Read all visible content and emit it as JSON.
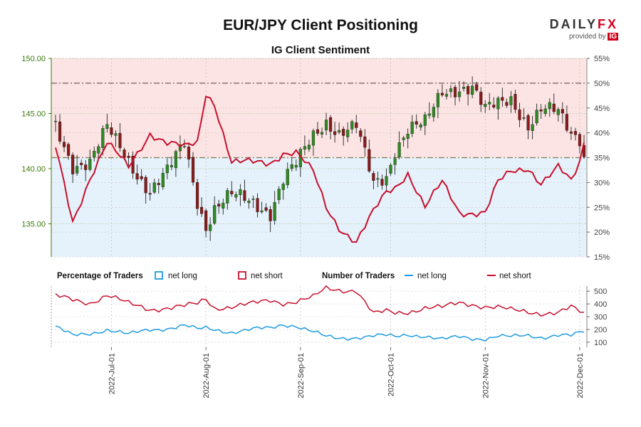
{
  "header": {
    "title": "EUR/JPY Client Positioning",
    "subtitle": "IG Client Sentiment"
  },
  "logo": {
    "brand_a": "DAILY",
    "brand_b": "FX",
    "provided_by": "provided by",
    "ig": "IG"
  },
  "legend": {
    "pct_title": "Percentage of Traders",
    "pct_long": "net long",
    "pct_short": "net short",
    "num_title": "Number of Traders",
    "num_long": "net long",
    "num_short": "net short"
  },
  "colors": {
    "long": "#1e9be0",
    "short": "#c8102e",
    "candle_up": "#2e8b22",
    "candle_down": "#8b1a1a",
    "wick": "#222222",
    "price_axis": "#3a7a0a",
    "short_zone": "#fce4e4",
    "long_zone": "#e6f2fb"
  },
  "chart_data": [
    {
      "type": "candlestick",
      "title": "EUR/JPY Client Positioning",
      "subtitle": "IG Client Sentiment",
      "y_left": {
        "ticks": [
          "150.00",
          "145.00",
          "140.00",
          "135.00"
        ],
        "ylim": [
          132.0,
          150.0
        ]
      },
      "y_right": {
        "ticks": [
          "55%",
          "50%",
          "45%",
          "40%",
          "35%",
          "30%",
          "25%",
          "20%",
          "15%"
        ],
        "ylim": [
          15,
          55
        ]
      },
      "reference_lines": [
        {
          "value": 50,
          "axis": "right",
          "style": "dash-dot"
        },
        {
          "value": 35,
          "axis": "right",
          "style": "dash-dot"
        }
      ],
      "x_labels": [
        "2022-Jul-01",
        "2022-Aug-01",
        "2022-Sep-01",
        "2022-Oct-01",
        "2022-Nov-01",
        "2022-Dec-01"
      ],
      "x_label_index": [
        13,
        35,
        57,
        78,
        100,
        122
      ],
      "anchors": {
        "idx": [
          0,
          4,
          8,
          12,
          17,
          22,
          26,
          30,
          33,
          35,
          37,
          41,
          46,
          50,
          53,
          56,
          60,
          63,
          66,
          70,
          74,
          77,
          79,
          82,
          86,
          90,
          94,
          97,
          100,
          103,
          106,
          110,
          113,
          117,
          120,
          122,
          123
        ],
        "close": [
          143.8,
          140.4,
          140.6,
          143.6,
          140.8,
          137.9,
          139.6,
          142.4,
          137.2,
          134.8,
          136.4,
          137.5,
          137.0,
          136.1,
          139.0,
          140.3,
          143.0,
          144.4,
          143.3,
          143.7,
          138.6,
          139.4,
          141.8,
          143.6,
          144.0,
          147.0,
          147.4,
          147.4,
          145.2,
          145.8,
          146.4,
          144.0,
          145.3,
          145.0,
          143.2,
          142.9,
          141.3
        ],
        "short_pct": [
          37,
          22,
          31,
          38,
          33,
          40,
          38,
          37,
          38,
          48,
          46,
          34,
          34,
          34,
          36,
          36,
          32,
          25,
          21,
          18,
          24,
          28,
          29,
          32,
          25,
          30,
          24,
          24,
          24,
          30,
          32,
          33,
          30,
          33,
          30,
          34,
          38
        ],
        "long_n": [
          220,
          150,
          170,
          200,
          160,
          200,
          210,
          230,
          200,
          210,
          200,
          180,
          200,
          210,
          240,
          230,
          180,
          140,
          130,
          140,
          150,
          150,
          140,
          160,
          150,
          120,
          140,
          130,
          130,
          150,
          140,
          150,
          140,
          160,
          150,
          170,
          180
        ],
        "short_n": [
          460,
          430,
          410,
          470,
          400,
          360,
          370,
          380,
          400,
          440,
          370,
          380,
          400,
          430,
          410,
          420,
          450,
          520,
          510,
          510,
          320,
          340,
          330,
          340,
          370,
          370,
          410,
          400,
          380,
          370,
          350,
          340,
          330,
          330,
          370,
          340,
          320
        ]
      }
    },
    {
      "type": "line",
      "title": "Percentage of Traders / Number of Traders",
      "y_right": {
        "ticks": [
          "500",
          "400",
          "300",
          "200",
          "100"
        ],
        "ylim": [
          60,
          540
        ]
      },
      "series": [
        {
          "name": "net long",
          "color": "#1e9be0"
        },
        {
          "name": "net short",
          "color": "#c8102e"
        }
      ]
    }
  ]
}
